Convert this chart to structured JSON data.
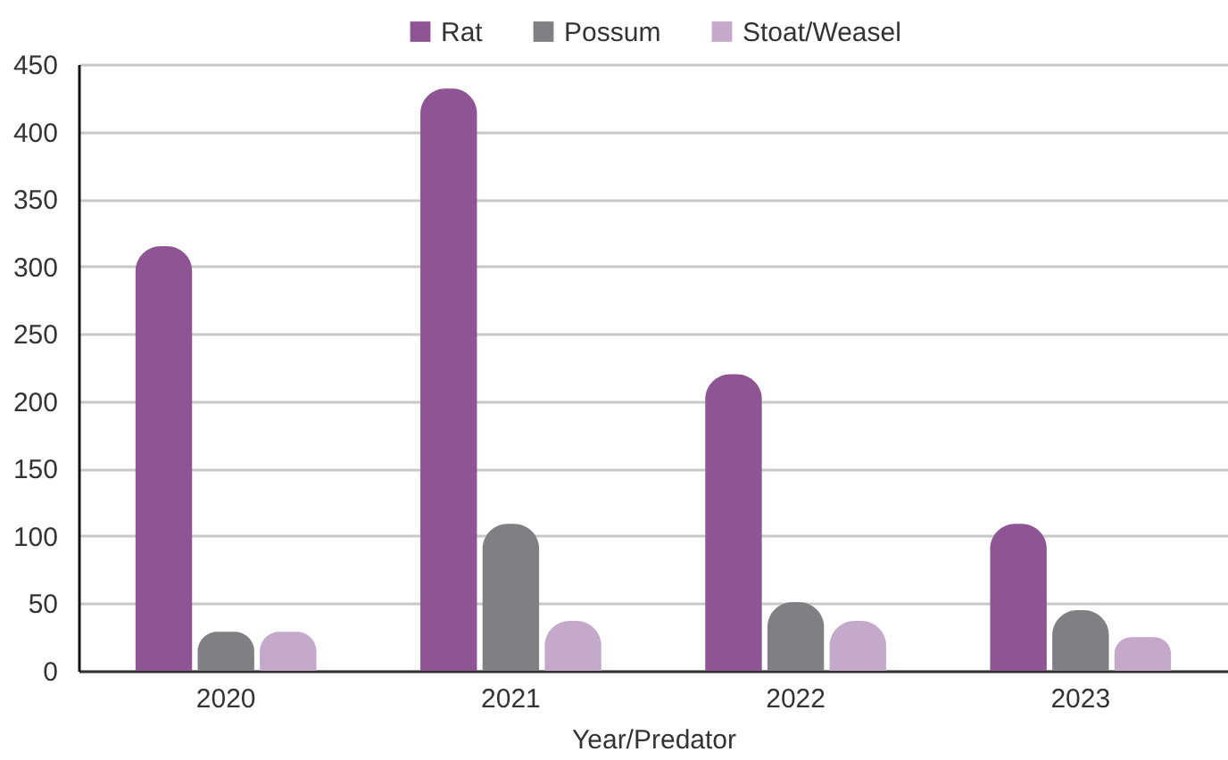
{
  "chart_data": {
    "type": "bar",
    "xlabel": "Year/Predator",
    "categories": [
      "2020",
      "2021",
      "2022",
      "2023"
    ],
    "series": [
      {
        "name": "Rat",
        "color": "#8e5494",
        "values": [
          315,
          432,
          220,
          109
        ]
      },
      {
        "name": "Possum",
        "color": "#808084",
        "values": [
          29,
          109,
          51,
          45
        ]
      },
      {
        "name": "Stoat/Weasel",
        "color": "#c5a9cb",
        "values": [
          29,
          37,
          37,
          25
        ]
      }
    ],
    "ylim": [
      0,
      450
    ],
    "yticks": [
      0,
      50,
      100,
      150,
      200,
      250,
      300,
      350,
      400,
      450
    ],
    "grid": "y",
    "legend": "top"
  }
}
